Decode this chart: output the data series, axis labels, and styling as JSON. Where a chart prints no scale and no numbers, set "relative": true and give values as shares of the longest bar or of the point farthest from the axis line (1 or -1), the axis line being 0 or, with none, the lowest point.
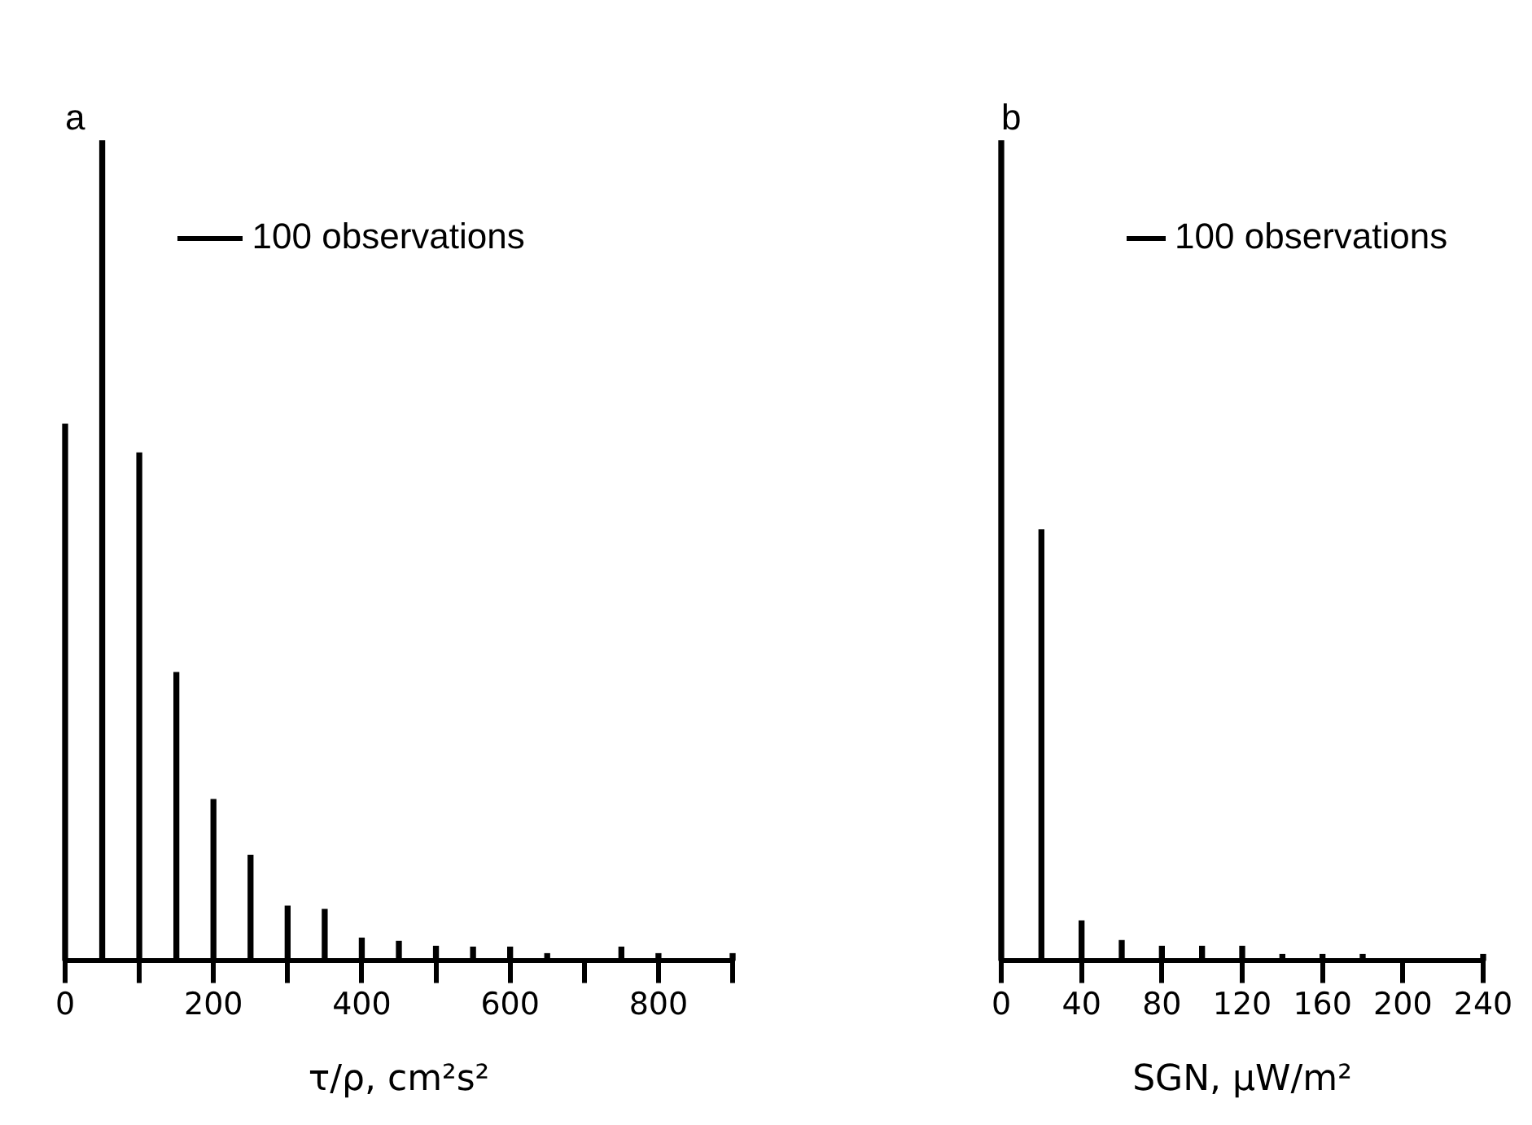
{
  "chart_data": [
    {
      "type": "bar",
      "title": "a",
      "xlabel": "τ/ρ, cm²s²",
      "relative": true,
      "annotations": [
        "100 observations"
      ],
      "x": [
        0,
        50,
        100,
        150,
        200,
        250,
        300,
        350,
        400,
        450,
        500,
        550,
        600,
        650,
        700,
        750,
        800,
        850,
        900
      ],
      "series": [
        {
          "color": "#000000",
          "values": [
            0.654,
            1,
            0.619,
            0.351,
            0.196,
            0.128,
            0.066,
            0.062,
            0.027,
            0.023,
            0.017,
            0.016,
            0.016,
            0.008,
            null,
            0.016,
            0.008,
            null,
            0.008
          ]
        }
      ],
      "xlim": [
        0,
        900
      ],
      "xticks": [
        0,
        {
          "value": 100,
          "label": null
        },
        200,
        {
          "value": 300,
          "label": null
        },
        400,
        {
          "value": 500,
          "label": null
        },
        600,
        {
          "value": 700,
          "label": null
        },
        800,
        {
          "value": 900,
          "label": null
        }
      ],
      "grid": false,
      "legend": false
    },
    {
      "type": "bar",
      "title": "b",
      "xlabel": "SGN, μW/m²",
      "relative": true,
      "annotations": [
        "100 observations"
      ],
      "x": [
        0,
        20,
        40,
        60,
        80,
        100,
        120,
        140,
        160,
        180,
        200,
        220,
        240
      ],
      "series": [
        {
          "color": "#000000",
          "values": [
            1,
            0.525,
            0.048,
            0.024,
            0.017,
            0.017,
            0.017,
            0.007,
            0.007,
            0.007,
            null,
            null,
            0.007
          ]
        }
      ],
      "xlim": [
        0,
        240
      ],
      "xticks": [
        0,
        40,
        80,
        120,
        160,
        200,
        240
      ],
      "grid": false,
      "legend": false
    }
  ]
}
